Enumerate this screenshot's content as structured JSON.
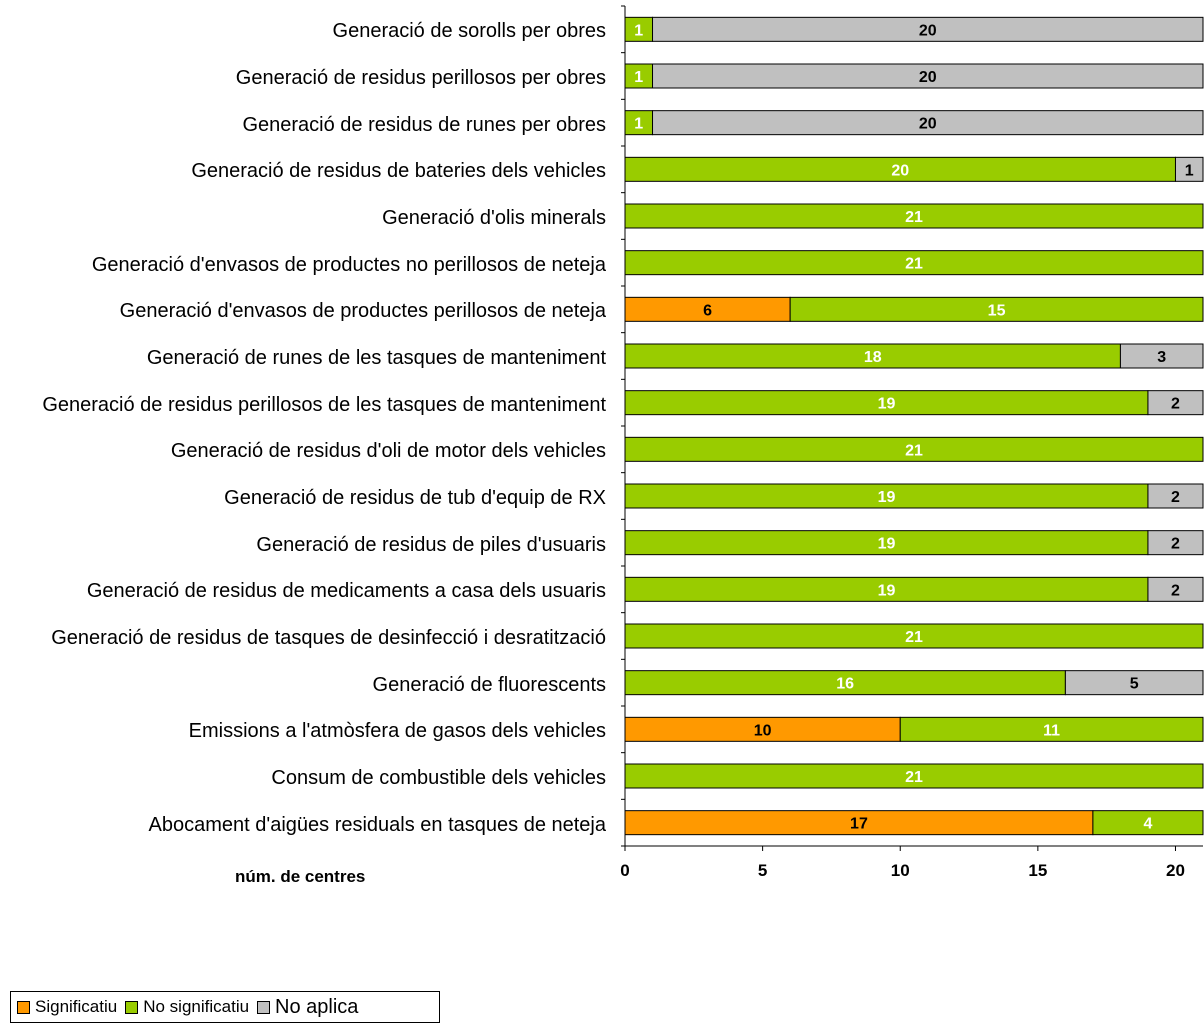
{
  "chart_data": {
    "type": "bar",
    "orientation": "horizontal",
    "stacked": true,
    "xlabel": "núm. de centres",
    "xlim": [
      0,
      21
    ],
    "xticks": [
      0,
      5,
      10,
      15,
      20
    ],
    "grid": false,
    "legend_position": "bottom-left",
    "categories": [
      "Generació de sorolls per obres",
      "Generació de residus perillosos per obres",
      "Generació de residus de runes per obres",
      "Generació de residus de bateries dels vehicles",
      "Generació d'olis minerals",
      "Generació d'envasos de productes no perillosos de neteja",
      "Generació d'envasos de productes  perillosos de neteja",
      "Generació de runes de les tasques de manteniment",
      "Generació de residus perillosos de les tasques de manteniment",
      "Generació de residus d'oli de motor dels vehicles",
      "Generació de residus de tub d'equip de RX",
      "Generació de residus de piles d'usuaris",
      "Generació de residus de medicaments a casa dels usuaris",
      "Generació de residus  de tasques de desinfecció i desratització",
      "Generació de fluorescents",
      "Emissions a l'atmòsfera de gasos dels vehicles",
      "Consum de combustible dels vehicles",
      "Abocament d'aigües residuals en tasques de neteja"
    ],
    "series": [
      {
        "name": "Significatiu",
        "color": "#ff9900",
        "label_color": "#000000",
        "values": [
          0,
          0,
          0,
          0,
          0,
          0,
          6,
          0,
          0,
          0,
          0,
          0,
          0,
          0,
          0,
          10,
          0,
          17
        ]
      },
      {
        "name": "No significatiu",
        "color": "#99cc00",
        "label_color": "#ffffff",
        "values": [
          1,
          1,
          1,
          20,
          21,
          21,
          15,
          18,
          19,
          21,
          19,
          19,
          19,
          21,
          16,
          11,
          21,
          4
        ]
      },
      {
        "name": "No aplica",
        "color": "#c0c0c0",
        "label_color": "#000000",
        "values": [
          20,
          20,
          20,
          1,
          0,
          0,
          0,
          3,
          2,
          0,
          2,
          2,
          2,
          0,
          5,
          0,
          0,
          0
        ]
      }
    ]
  }
}
